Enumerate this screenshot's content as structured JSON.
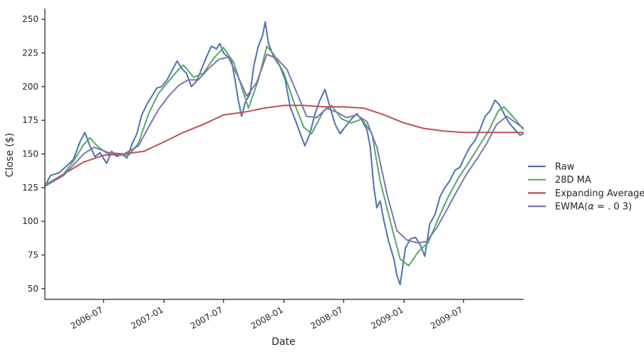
{
  "chart_data": {
    "type": "line",
    "title": "",
    "xlabel": "Date",
    "ylabel": "Close ($)",
    "xlim": [
      "2006-01-03",
      "2009-12-31"
    ],
    "ylim": [
      42,
      258
    ],
    "x_ticks": [
      "2006-07",
      "2007-01",
      "2007-07",
      "2008-01",
      "2008-07",
      "2009-01",
      "2009-07"
    ],
    "y_ticks": [
      50,
      75,
      100,
      125,
      150,
      175,
      200,
      225,
      250
    ],
    "grid": false,
    "legend_position": "right, outside plot",
    "series": [
      {
        "name": "Raw",
        "color": "#4c72b0",
        "points": [
          [
            "2006-01-03",
            126
          ],
          [
            "2006-01-20",
            134
          ],
          [
            "2006-02-15",
            136
          ],
          [
            "2006-03-10",
            141
          ],
          [
            "2006-03-31",
            146
          ],
          [
            "2006-04-20",
            159
          ],
          [
            "2006-05-05",
            166
          ],
          [
            "2006-05-20",
            156
          ],
          [
            "2006-06-05",
            148
          ],
          [
            "2006-06-20",
            151
          ],
          [
            "2006-07-10",
            143
          ],
          [
            "2006-07-25",
            152
          ],
          [
            "2006-08-10",
            148
          ],
          [
            "2006-08-25",
            150
          ],
          [
            "2006-09-10",
            147
          ],
          [
            "2006-09-25",
            157
          ],
          [
            "2006-10-10",
            165
          ],
          [
            "2006-10-25",
            179
          ],
          [
            "2006-11-10",
            187
          ],
          [
            "2006-11-25",
            193
          ],
          [
            "2006-12-10",
            199
          ],
          [
            "2006-12-25",
            200
          ],
          [
            "2007-01-10",
            205
          ],
          [
            "2007-01-25",
            212
          ],
          [
            "2007-02-10",
            219
          ],
          [
            "2007-02-25",
            213
          ],
          [
            "2007-03-10",
            210
          ],
          [
            "2007-03-25",
            200
          ],
          [
            "2007-04-10",
            204
          ],
          [
            "2007-04-25",
            213
          ],
          [
            "2007-05-10",
            222
          ],
          [
            "2007-05-25",
            230
          ],
          [
            "2007-06-10",
            228
          ],
          [
            "2007-06-20",
            232
          ],
          [
            "2007-07-01",
            225
          ],
          [
            "2007-07-15",
            222
          ],
          [
            "2007-07-25",
            220
          ],
          [
            "2007-08-05",
            205
          ],
          [
            "2007-08-15",
            190
          ],
          [
            "2007-08-25",
            178
          ],
          [
            "2007-09-05",
            188
          ],
          [
            "2007-09-20",
            195
          ],
          [
            "2007-10-01",
            215
          ],
          [
            "2007-10-15",
            230
          ],
          [
            "2007-10-28",
            238
          ],
          [
            "2007-11-05",
            248
          ],
          [
            "2007-11-15",
            232
          ],
          [
            "2007-12-01",
            222
          ],
          [
            "2007-12-20",
            215
          ],
          [
            "2008-01-05",
            205
          ],
          [
            "2008-01-20",
            185
          ],
          [
            "2008-02-05",
            175
          ],
          [
            "2008-02-20",
            165
          ],
          [
            "2008-03-05",
            156
          ],
          [
            "2008-03-20",
            165
          ],
          [
            "2008-04-05",
            180
          ],
          [
            "2008-04-20",
            190
          ],
          [
            "2008-05-05",
            198
          ],
          [
            "2008-05-20",
            185
          ],
          [
            "2008-06-05",
            172
          ],
          [
            "2008-06-20",
            165
          ],
          [
            "2008-07-05",
            170
          ],
          [
            "2008-07-25",
            176
          ],
          [
            "2008-08-10",
            180
          ],
          [
            "2008-08-25",
            175
          ],
          [
            "2008-09-10",
            168
          ],
          [
            "2008-09-20",
            155
          ],
          [
            "2008-10-01",
            125
          ],
          [
            "2008-10-10",
            110
          ],
          [
            "2008-10-20",
            115
          ],
          [
            "2008-11-01",
            100
          ],
          [
            "2008-11-15",
            85
          ],
          [
            "2008-12-01",
            72
          ],
          [
            "2008-12-10",
            60
          ],
          [
            "2008-12-20",
            53
          ],
          [
            "2009-01-05",
            80
          ],
          [
            "2009-01-20",
            87
          ],
          [
            "2009-02-05",
            88
          ],
          [
            "2009-02-20",
            82
          ],
          [
            "2009-03-05",
            74
          ],
          [
            "2009-03-20",
            98
          ],
          [
            "2009-04-05",
            105
          ],
          [
            "2009-04-20",
            118
          ],
          [
            "2009-05-05",
            125
          ],
          [
            "2009-05-20",
            130
          ],
          [
            "2009-06-05",
            138
          ],
          [
            "2009-06-20",
            140
          ],
          [
            "2009-07-05",
            148
          ],
          [
            "2009-07-20",
            155
          ],
          [
            "2009-08-05",
            160
          ],
          [
            "2009-08-20",
            168
          ],
          [
            "2009-09-05",
            178
          ],
          [
            "2009-09-20",
            182
          ],
          [
            "2009-10-05",
            190
          ],
          [
            "2009-10-20",
            186
          ],
          [
            "2009-11-05",
            178
          ],
          [
            "2009-11-20",
            172
          ],
          [
            "2009-12-05",
            168
          ],
          [
            "2009-12-20",
            164
          ],
          [
            "2009-12-31",
            165
          ]
        ]
      },
      {
        "name": "28D MA",
        "color": "#55a868",
        "points": [
          [
            "2006-01-03",
            127
          ],
          [
            "2006-03-01",
            135
          ],
          [
            "2006-04-01",
            145
          ],
          [
            "2006-05-01",
            157
          ],
          [
            "2006-05-20",
            162
          ],
          [
            "2006-06-15",
            155
          ],
          [
            "2006-07-15",
            150
          ],
          [
            "2006-08-15",
            149
          ],
          [
            "2006-09-15",
            149
          ],
          [
            "2006-10-15",
            158
          ],
          [
            "2006-11-15",
            180
          ],
          [
            "2006-12-15",
            195
          ],
          [
            "2007-01-15",
            204
          ],
          [
            "2007-02-15",
            213
          ],
          [
            "2007-03-01",
            216
          ],
          [
            "2007-04-01",
            207
          ],
          [
            "2007-05-01",
            210
          ],
          [
            "2007-06-01",
            221
          ],
          [
            "2007-07-01",
            229
          ],
          [
            "2007-08-01",
            218
          ],
          [
            "2007-08-25",
            200
          ],
          [
            "2007-09-15",
            184
          ],
          [
            "2007-10-15",
            205
          ],
          [
            "2007-11-10",
            230
          ],
          [
            "2007-12-01",
            224
          ],
          [
            "2008-01-01",
            210
          ],
          [
            "2008-02-01",
            188
          ],
          [
            "2008-03-01",
            170
          ],
          [
            "2008-03-25",
            165
          ],
          [
            "2008-05-01",
            182
          ],
          [
            "2008-05-25",
            186
          ],
          [
            "2008-06-25",
            176
          ],
          [
            "2008-07-25",
            173
          ],
          [
            "2008-08-25",
            176
          ],
          [
            "2008-09-25",
            165
          ],
          [
            "2008-10-20",
            130
          ],
          [
            "2008-11-20",
            100
          ],
          [
            "2008-12-20",
            72
          ],
          [
            "2009-01-15",
            67
          ],
          [
            "2009-02-15",
            78
          ],
          [
            "2009-03-15",
            84
          ],
          [
            "2009-04-15",
            102
          ],
          [
            "2009-05-15",
            118
          ],
          [
            "2009-06-15",
            132
          ],
          [
            "2009-07-15",
            143
          ],
          [
            "2009-08-15",
            155
          ],
          [
            "2009-09-15",
            167
          ],
          [
            "2009-10-15",
            182
          ],
          [
            "2009-11-01",
            185
          ],
          [
            "2009-12-01",
            177
          ],
          [
            "2009-12-31",
            168
          ]
        ]
      },
      {
        "name": "Expanding Average",
        "color": "#c44e52",
        "points": [
          [
            "2006-01-03",
            126
          ],
          [
            "2006-03-01",
            135
          ],
          [
            "2006-05-01",
            144
          ],
          [
            "2006-07-01",
            149
          ],
          [
            "2006-09-01",
            150
          ],
          [
            "2006-11-01",
            152
          ],
          [
            "2007-01-01",
            159
          ],
          [
            "2007-03-01",
            166
          ],
          [
            "2007-05-01",
            172
          ],
          [
            "2007-07-01",
            179
          ],
          [
            "2007-09-01",
            181
          ],
          [
            "2007-11-01",
            184
          ],
          [
            "2008-01-01",
            186
          ],
          [
            "2008-03-01",
            186
          ],
          [
            "2008-05-01",
            185
          ],
          [
            "2008-07-01",
            185
          ],
          [
            "2008-09-01",
            184
          ],
          [
            "2008-11-01",
            179
          ],
          [
            "2009-01-01",
            173
          ],
          [
            "2009-03-01",
            169
          ],
          [
            "2009-05-01",
            167
          ],
          [
            "2009-07-01",
            166
          ],
          [
            "2009-09-01",
            166
          ],
          [
            "2009-11-01",
            166
          ],
          [
            "2009-12-31",
            166
          ]
        ]
      },
      {
        "name": "EWMA($\\alpha=.03$)",
        "color": "#8172b2",
        "points": [
          [
            "2006-01-03",
            126
          ],
          [
            "2006-03-01",
            134
          ],
          [
            "2006-05-01",
            150
          ],
          [
            "2006-06-01",
            155
          ],
          [
            "2006-07-15",
            151
          ],
          [
            "2006-09-01",
            150
          ],
          [
            "2006-10-15",
            156
          ],
          [
            "2006-11-15",
            170
          ],
          [
            "2006-12-15",
            183
          ],
          [
            "2007-01-15",
            193
          ],
          [
            "2007-02-15",
            201
          ],
          [
            "2007-03-15",
            205
          ],
          [
            "2007-04-15",
            205
          ],
          [
            "2007-05-15",
            213
          ],
          [
            "2007-06-15",
            220
          ],
          [
            "2007-07-15",
            222
          ],
          [
            "2007-08-15",
            207
          ],
          [
            "2007-09-10",
            193
          ],
          [
            "2007-10-10",
            203
          ],
          [
            "2007-11-10",
            224
          ],
          [
            "2007-12-10",
            221
          ],
          [
            "2008-01-10",
            213
          ],
          [
            "2008-02-10",
            195
          ],
          [
            "2008-03-10",
            178
          ],
          [
            "2008-04-10",
            177
          ],
          [
            "2008-05-10",
            184
          ],
          [
            "2008-06-10",
            181
          ],
          [
            "2008-07-10",
            177
          ],
          [
            "2008-08-10",
            179
          ],
          [
            "2008-09-10",
            174
          ],
          [
            "2008-10-10",
            155
          ],
          [
            "2008-11-10",
            120
          ],
          [
            "2008-12-10",
            93
          ],
          [
            "2009-01-10",
            86
          ],
          [
            "2009-02-10",
            84
          ],
          [
            "2009-03-10",
            85
          ],
          [
            "2009-04-10",
            95
          ],
          [
            "2009-05-10",
            108
          ],
          [
            "2009-06-10",
            122
          ],
          [
            "2009-07-10",
            135
          ],
          [
            "2009-08-10",
            146
          ],
          [
            "2009-09-10",
            158
          ],
          [
            "2009-10-10",
            172
          ],
          [
            "2009-11-10",
            178
          ],
          [
            "2009-12-31",
            169
          ]
        ]
      }
    ]
  }
}
